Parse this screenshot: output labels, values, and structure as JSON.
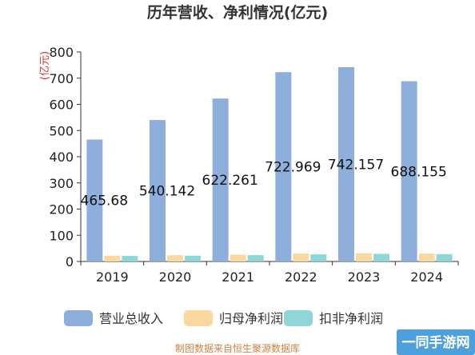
{
  "chart_data": {
    "type": "bar",
    "title": "历年营收、净利情况(亿元)",
    "ylabel": "(亿元)",
    "xlabel": "",
    "categories": [
      "2019",
      "2020",
      "2021",
      "2022",
      "2023",
      "2024"
    ],
    "ylim": [
      0,
      800
    ],
    "yticks": [
      0,
      100,
      200,
      300,
      400,
      500,
      600,
      700,
      800
    ],
    "grid": false,
    "legend_position": "bottom",
    "series": [
      {
        "name": "营业总收入",
        "color": "#8eaedb",
        "values": [
          465.68,
          540.142,
          622.261,
          722.969,
          742.157,
          688.155
        ],
        "labels": [
          "465.68",
          "540.142",
          "622.261",
          "722.969",
          "742.157",
          "688.155"
        ]
      },
      {
        "name": "归母净利润",
        "color": "#fad8a0",
        "values": [
          22,
          24,
          26,
          30,
          31,
          30
        ]
      },
      {
        "name": "扣非净利润",
        "color": "#8fd6d6",
        "values": [
          21,
          22,
          24,
          27,
          29,
          28
        ]
      }
    ]
  },
  "footer": {
    "source": "制图数据来自恒生聚源数据库",
    "watermark": "一同手游网"
  }
}
